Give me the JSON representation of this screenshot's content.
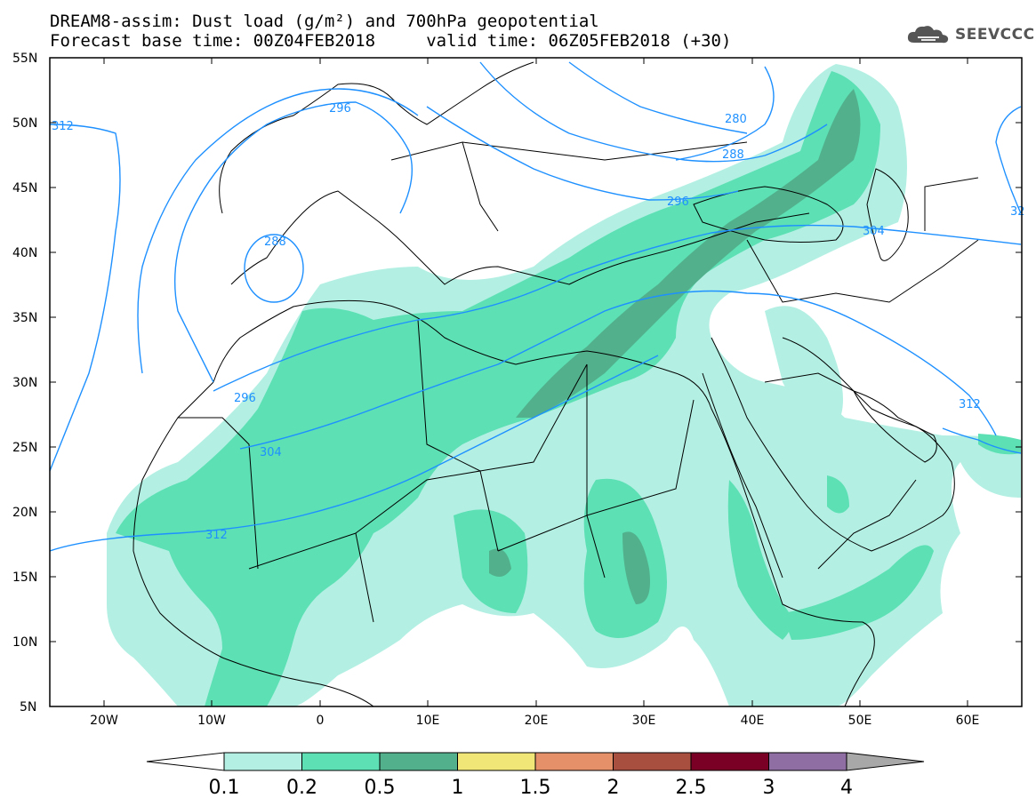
{
  "header": {
    "title_line1": "DREAM8-assim: Dust load (g/m²) and 700hPa geopotential",
    "title_line2": "Forecast base time: 00Z04FEB2018     valid time: 06Z05FEB2018 (+30)",
    "logo_text": "SEEVCCC",
    "logo_icon": "cloud-icon"
  },
  "map": {
    "lon_range": [
      -25,
      65
    ],
    "lat_range": [
      5,
      55
    ],
    "lat_labels": [
      "55N",
      "50N",
      "45N",
      "40N",
      "35N",
      "30N",
      "25N",
      "20N",
      "15N",
      "10N",
      "5N"
    ],
    "lon_labels": [
      "20W",
      "10W",
      "0",
      "10E",
      "20E",
      "30E",
      "40E",
      "50E",
      "60E"
    ],
    "contour_labels": [
      "312",
      "296",
      "280",
      "288",
      "296",
      "304",
      "288",
      "296",
      "304",
      "312",
      "312",
      "32"
    ],
    "dust_colors": [
      "#b3f0e3",
      "#5ce0b4",
      "#52b08c",
      "#f0e678",
      "#e6906a",
      "#a84f3f",
      "#7a0026",
      "#8f6fa3",
      "#a8a8a8"
    ]
  },
  "colorbar": {
    "levels": [
      "0.1",
      "0.2",
      "0.5",
      "1",
      "1.5",
      "2",
      "2.5",
      "3",
      "4"
    ],
    "colors": [
      "#ffffff",
      "#b3f0e3",
      "#5ce0b4",
      "#52b08c",
      "#f0e678",
      "#e6906a",
      "#a84f3f",
      "#7a0026",
      "#8f6fa3",
      "#a8a8a8"
    ]
  }
}
